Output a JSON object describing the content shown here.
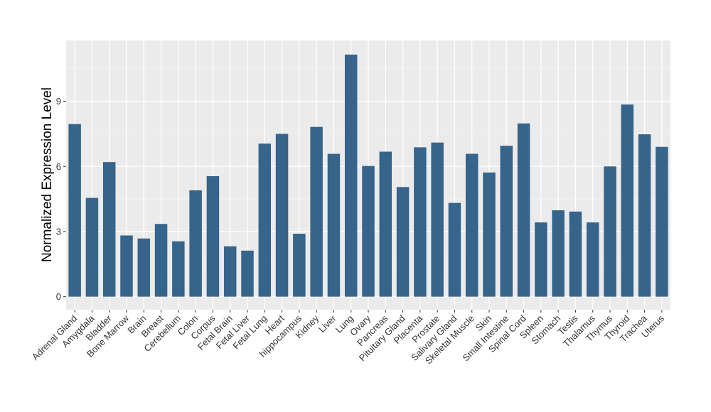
{
  "chart_data": {
    "type": "bar",
    "ylabel": "Normalized Expression Level",
    "xlabel": "",
    "ylim": [
      -0.6,
      11.8
    ],
    "yticks": [
      0,
      3,
      6,
      9
    ],
    "grid": true,
    "categories": [
      "Adrenal Gland",
      "Amygdala",
      "Bladder",
      "Bone Marrow",
      "Brain",
      "Breast",
      "Cerebellum",
      "Colon",
      "Corpus",
      "Fetal Brain",
      "Fetal Liver",
      "Fetal Lung",
      "Heart",
      "hippocampus",
      "Kidney",
      "Liver",
      "Lung",
      "Ovary",
      "Pancreas",
      "Pituitary Gland",
      "Placenta",
      "Prostate",
      "Salivary Gland",
      "Skeletal Muscle",
      "Skin",
      "Small Intestine",
      "Spinal Cord",
      "Spleen",
      "Stomach",
      "Testis",
      "Thalamus",
      "Thymus",
      "Thyroid",
      "Trachea",
      "Uterus"
    ],
    "values": [
      7.95,
      4.55,
      6.2,
      2.82,
      2.68,
      3.35,
      2.55,
      4.9,
      5.55,
      2.32,
      2.12,
      7.05,
      7.5,
      2.9,
      7.82,
      6.58,
      11.15,
      6.02,
      6.68,
      5.05,
      6.88,
      7.1,
      4.32,
      6.58,
      5.72,
      6.95,
      7.98,
      3.42,
      3.98,
      3.92,
      3.42,
      6.0,
      8.85,
      7.48,
      6.9
    ],
    "colors": {
      "bar": "#36648b",
      "panel": "#ebebeb",
      "grid_major": "#ffffff",
      "grid_minor": "#f5f5f5"
    }
  }
}
